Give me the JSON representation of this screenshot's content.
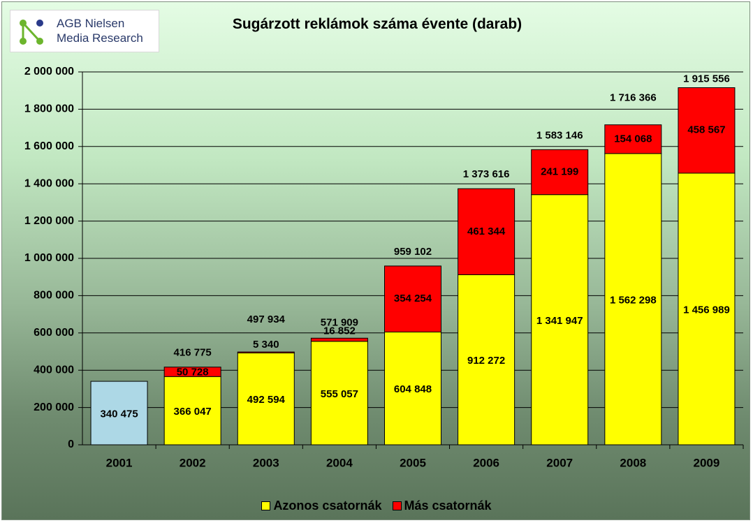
{
  "logo": {
    "line1": "AGB Nielsen",
    "line2": "Media Research",
    "colors": {
      "dots": "#6cb52d",
      "accent_dot": "#2a3a8a"
    }
  },
  "chart_data": {
    "type": "bar",
    "stacked": true,
    "title": "Sugárzott reklámok száma évente (darab)",
    "xlabel": "",
    "ylabel": "",
    "categories": [
      "2001",
      "2002",
      "2003",
      "2004",
      "2005",
      "2006",
      "2007",
      "2008",
      "2009"
    ],
    "series": [
      {
        "name": "Azonos csatornák",
        "color": "#ffff00",
        "values": [
          340475,
          366047,
          492594,
          555057,
          604848,
          912272,
          1341947,
          1562298,
          1456989
        ],
        "labels": [
          "340 475",
          "366 047",
          "492 594",
          "555 057",
          "604 848",
          "912 272",
          "1 341 947",
          "1 562 298",
          "1 456 989"
        ]
      },
      {
        "name": "Más csatornák",
        "color": "#ff0000",
        "values": [
          null,
          50728,
          5340,
          16852,
          354254,
          461344,
          241199,
          154068,
          458567
        ],
        "labels": [
          "",
          "50 728",
          "5 340",
          "16 852",
          "354 254",
          "461 344",
          "241 199",
          "154 068",
          "458 567"
        ]
      }
    ],
    "totals": [
      null,
      416775,
      497934,
      571909,
      959102,
      1373616,
      1583146,
      1716366,
      1915556
    ],
    "total_labels": [
      "",
      "416 775",
      "497 934",
      "571 909",
      "959 102",
      "1 373 616",
      "1 583 146",
      "1 716 366",
      "1 915 556"
    ],
    "special_bar": {
      "category": "2001",
      "color": "#add8e6"
    },
    "ylim": [
      0,
      2000000
    ],
    "yticks": [
      0,
      200000,
      400000,
      600000,
      800000,
      1000000,
      1200000,
      1400000,
      1600000,
      1800000,
      2000000
    ],
    "ytick_labels": [
      "0",
      "200 000",
      "400 000",
      "600 000",
      "800 000",
      "1 000 000",
      "1 200 000",
      "1 400 000",
      "1 600 000",
      "1 800 000",
      "2 000 000"
    ],
    "grid": true,
    "legend_position": "bottom"
  }
}
